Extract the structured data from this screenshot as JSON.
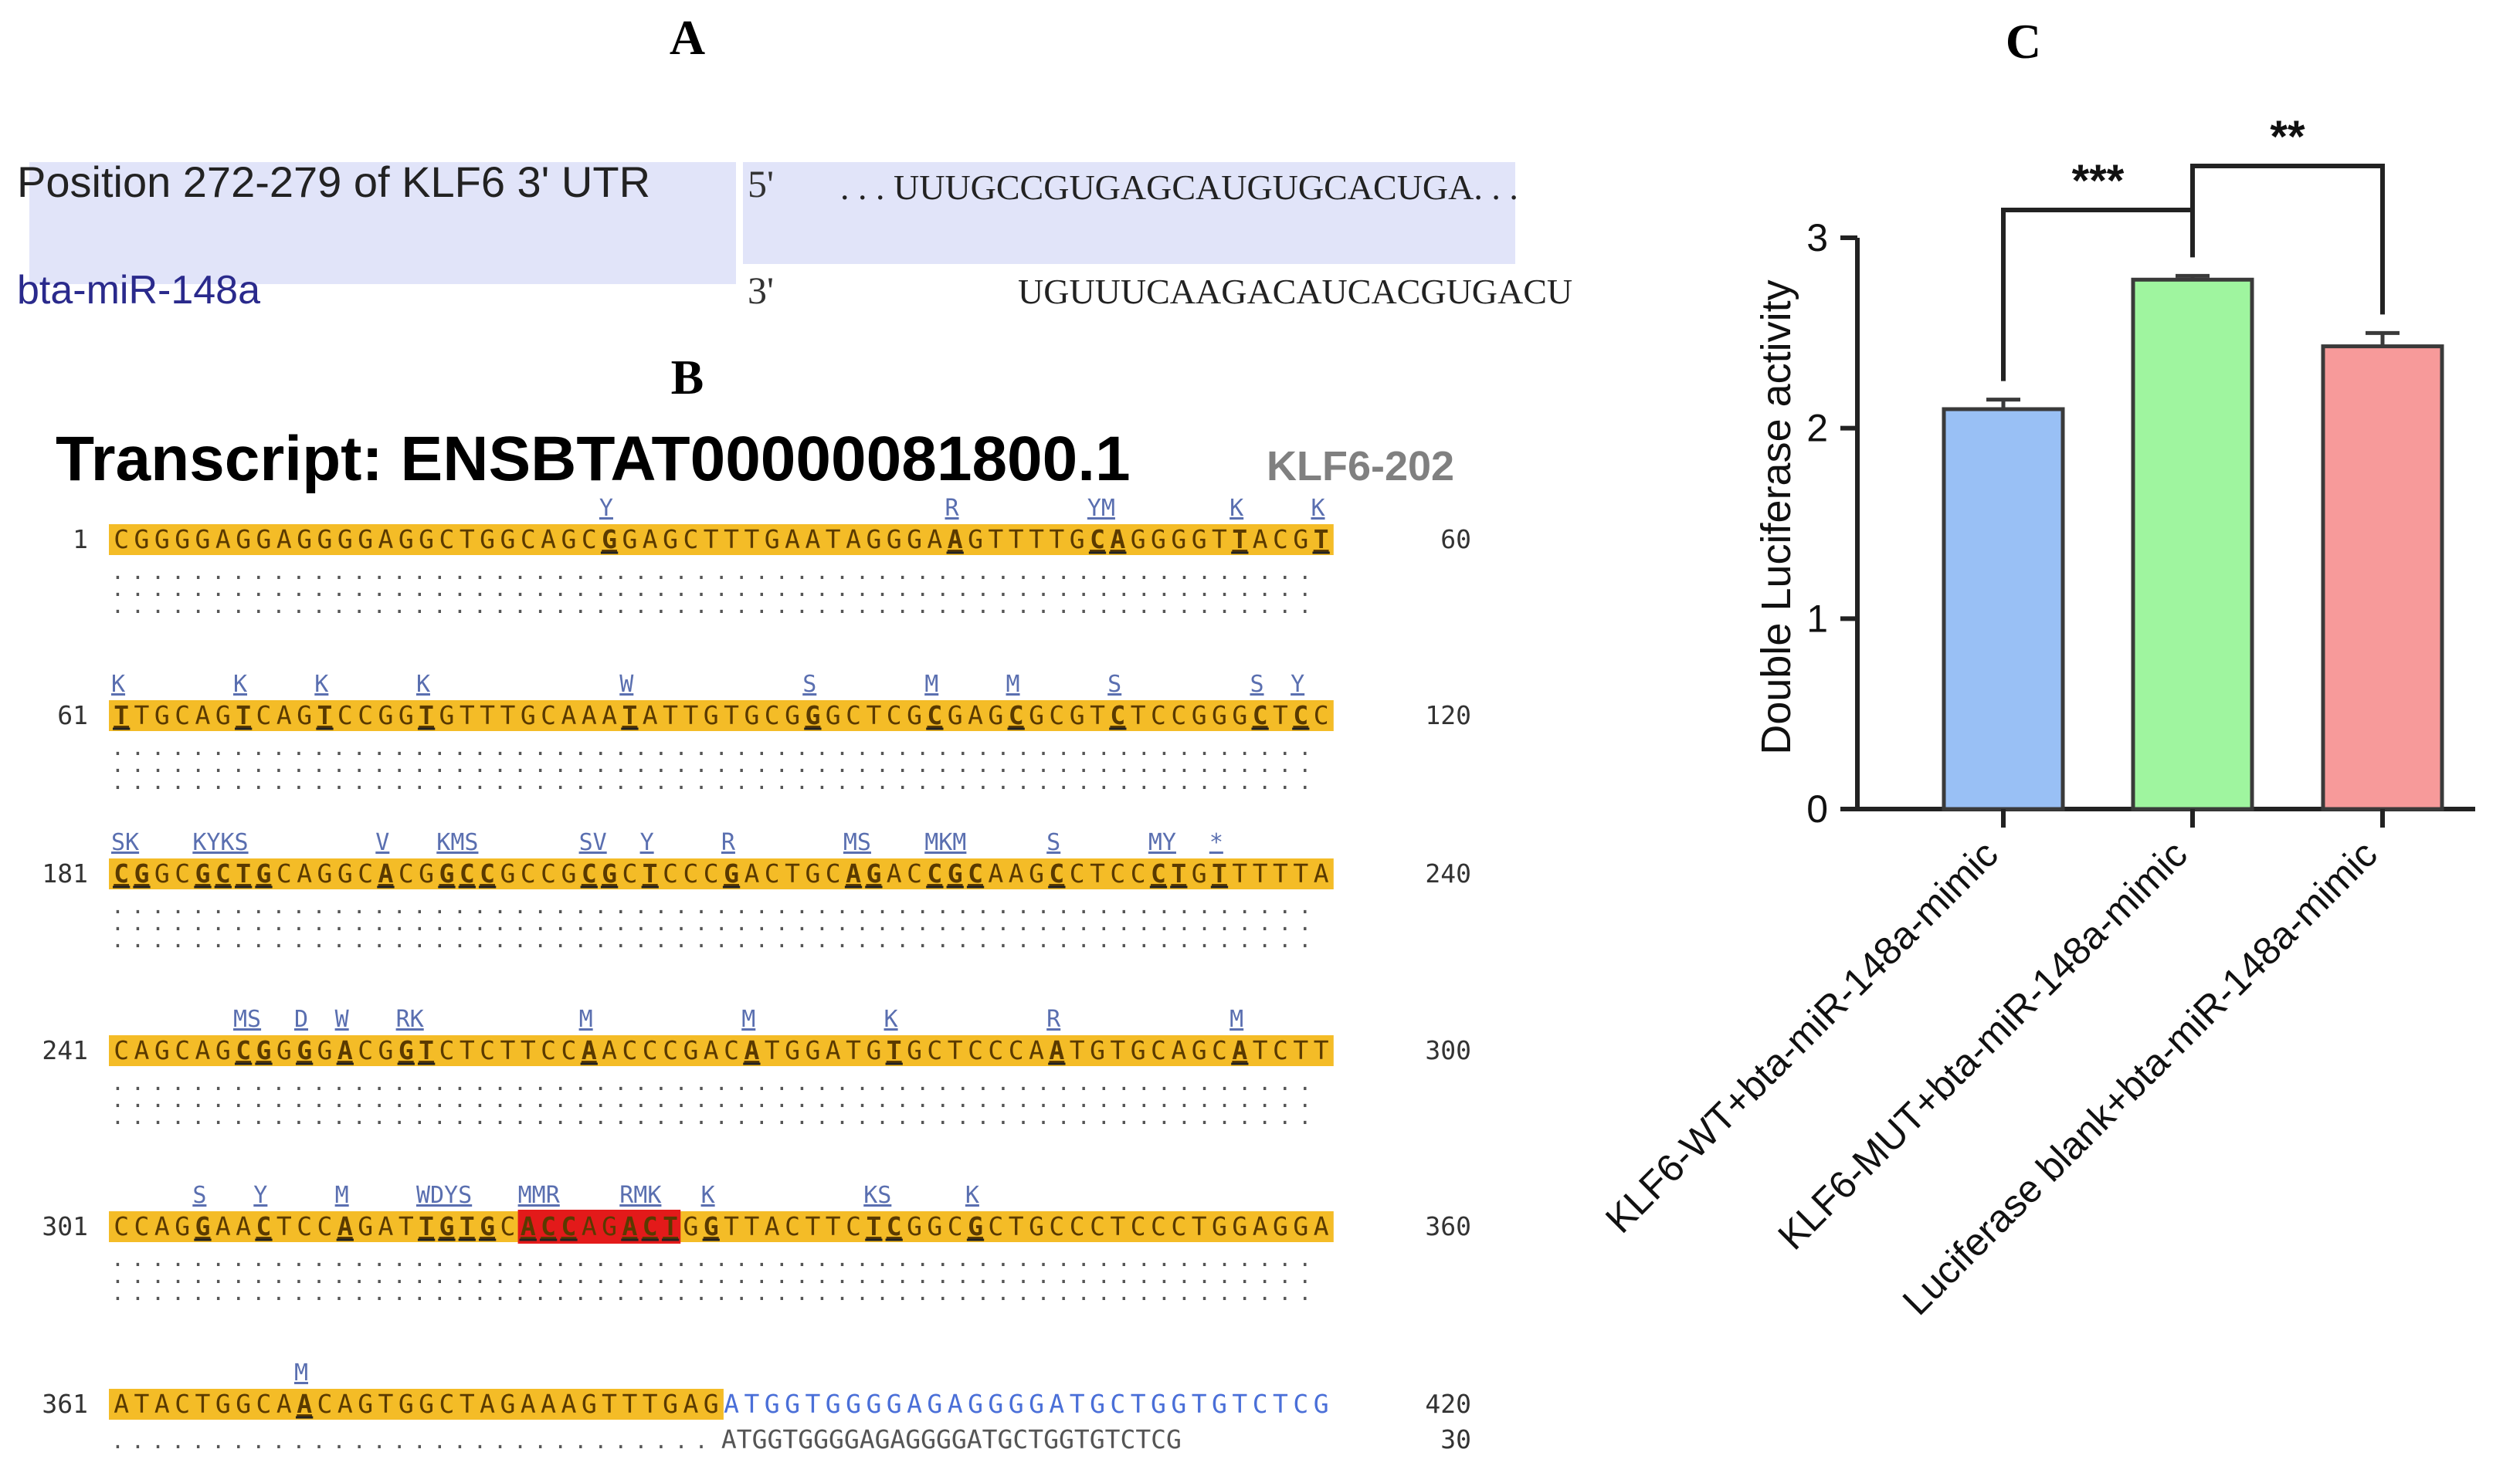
{
  "panels": {
    "a": {
      "label": "A",
      "row1_label": "Position 272-279 of KLF6 3' UTR",
      "row1_end": "5'",
      "row1_seq": ". . . UUUGCCGUGAGCAUGUGCACUGA. . .",
      "row2_label": "bta-miR-148a",
      "row2_end": "3'",
      "row2_seq": "UGUUUCAAGACAUCACGUGACU"
    },
    "b": {
      "label": "B",
      "title": "Transcript: ENSBTAT00000081800.1",
      "subtitle": "KLF6-202",
      "dots": "...................................................................................",
      "blocks": [
        {
          "start": "1",
          "end": "60",
          "seq": "CGGGGAGGAGGGGAGGCTGGCAGCGGAGCTTTGAATAGGGAAGTTTTGCAGGGGTTACGT",
          "annos": [
            [
              24,
              "Y"
            ],
            [
              41,
              "R"
            ],
            [
              48,
              "YM"
            ],
            [
              55,
              "K"
            ],
            [
              59,
              "K"
            ]
          ],
          "marks": [
            24,
            41,
            48,
            49,
            55,
            59
          ],
          "hl_end": 60,
          "red": null
        },
        {
          "start": "61",
          "end": "120",
          "seq": "TTGCAGTCAGTCCGGTGTTTGCAAATATTGTGCGGGCTCGCGAGCGCGTCTCCGGGCTCC",
          "annos": [
            [
              0,
              "K"
            ],
            [
              6,
              "K"
            ],
            [
              10,
              "K"
            ],
            [
              15,
              "K"
            ],
            [
              25,
              "W"
            ],
            [
              34,
              "S"
            ],
            [
              40,
              "M"
            ],
            [
              44,
              "M"
            ],
            [
              49,
              "S"
            ],
            [
              56,
              "S"
            ],
            [
              58,
              "Y"
            ]
          ],
          "marks": [
            0,
            6,
            10,
            15,
            25,
            34,
            40,
            44,
            49,
            56,
            58
          ],
          "hl_end": 60,
          "red": null
        },
        {
          "start": "181",
          "end": "240",
          "seq": "CGGCGCTGCAGGCACGGCCGCCGCGCTCCCGACTGCAGACCGCAAGCCTCCCTGTTTTTA",
          "annos": [
            [
              0,
              "SK"
            ],
            [
              4,
              "KYKS"
            ],
            [
              13,
              "V"
            ],
            [
              16,
              "KMS"
            ],
            [
              23,
              "SV"
            ],
            [
              26,
              "Y"
            ],
            [
              30,
              "R"
            ],
            [
              36,
              "MS"
            ],
            [
              40,
              "MKM"
            ],
            [
              46,
              "S"
            ],
            [
              51,
              "MY"
            ],
            [
              54,
              "*"
            ]
          ],
          "marks": [
            0,
            1,
            4,
            5,
            6,
            7,
            13,
            16,
            17,
            18,
            23,
            24,
            26,
            30,
            36,
            37,
            40,
            41,
            42,
            46,
            51,
            52,
            54
          ],
          "hl_end": 60,
          "red": null
        },
        {
          "start": "241",
          "end": "300",
          "seq": "CAGCAGCGGGGACGGTCTCTTCCAACCCGACATGGATGTGCTCCCAATGTGCAGCATCTT",
          "annos": [
            [
              6,
              "MS"
            ],
            [
              9,
              "D"
            ],
            [
              11,
              "W"
            ],
            [
              14,
              "RK"
            ],
            [
              23,
              "M"
            ],
            [
              31,
              "M"
            ],
            [
              38,
              "K"
            ],
            [
              46,
              "R"
            ],
            [
              55,
              "M"
            ]
          ],
          "marks": [
            6,
            7,
            9,
            11,
            14,
            15,
            23,
            31,
            38,
            46,
            55
          ],
          "hl_end": 60,
          "red": null
        },
        {
          "start": "301",
          "end": "360",
          "seq": "CCAGGAACTCCAGATTGTGCACCAGACTGGTTACTTCTCGGCGCTGCCCTCCCTGGAGGA",
          "annos": [
            [
              4,
              "S"
            ],
            [
              7,
              "Y"
            ],
            [
              11,
              "M"
            ],
            [
              15,
              "WDYS"
            ],
            [
              20,
              "MMR"
            ],
            [
              25,
              "RMK"
            ],
            [
              29,
              "K"
            ],
            [
              37,
              "KS"
            ],
            [
              42,
              "K"
            ]
          ],
          "marks": [
            4,
            7,
            11,
            15,
            16,
            17,
            18,
            20,
            21,
            22,
            25,
            26,
            27,
            29,
            37,
            38,
            42
          ],
          "hl_end": 60,
          "red": [
            20,
            27
          ]
        },
        {
          "start": "361",
          "end": "420",
          "seq": "ATACTGGCAACAGTGGCTAGAAAGTTTGAGATGGTGGGGAGAGGGGATGCTGGTGTCTCG",
          "annos": [
            [
              9,
              "M"
            ]
          ],
          "marks": [
            9
          ],
          "hl_end": 30,
          "red": null
        }
      ],
      "last_row_dots": "..............................",
      "last_row_match": "ATGGTGGGGAGAGGGGATGCTGGTGTCTCG",
      "last_row_num": "30"
    },
    "c": {
      "label": "C",
      "sig1": "***",
      "sig2": "**"
    }
  },
  "chart_data": {
    "type": "bar",
    "title": "",
    "xlabel": "",
    "ylabel": "Double Luciferase activity",
    "ylim": [
      0,
      3
    ],
    "yticks": [
      "0",
      "1",
      "2",
      "3"
    ],
    "categories": [
      "KLF6-WT+bta-miR-148a-mimic",
      "KLF6-MUT+bta-miR-148a-mimic",
      "Luciferase blank+bta-miR-148a-mimic"
    ],
    "values": [
      2.1,
      2.78,
      2.43
    ],
    "errors": [
      0.05,
      0.02,
      0.07
    ],
    "colors": [
      "#99c0f5",
      "#9ff59f",
      "#f79a9a"
    ],
    "significance": [
      {
        "between": [
          0,
          1
        ],
        "label": "***"
      },
      {
        "between": [
          1,
          2
        ],
        "label": "**"
      }
    ]
  }
}
